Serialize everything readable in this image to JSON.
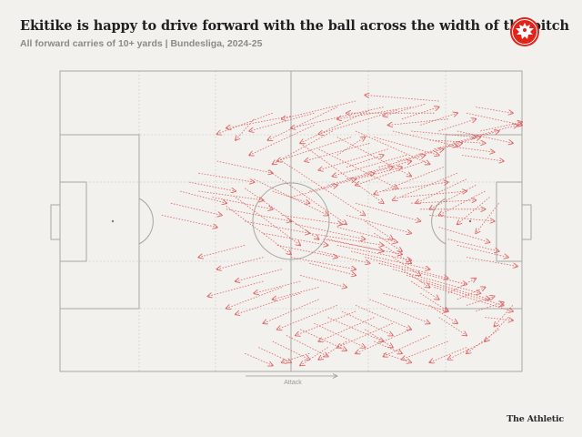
{
  "header": {
    "title": "Ekitike is happy to drive forward with the ball across the width of the pitch",
    "subtitle": "All forward carries of 10+ yards | Bundesliga, 2024-25"
  },
  "legend": {
    "attack_label": "Attack"
  },
  "footer": {
    "brand": "The Athletic"
  },
  "colors": {
    "carry": "#e06666",
    "line": "#a6a6a2",
    "grid": "#c8c8c4",
    "crest": "#e2231a"
  },
  "icons": {
    "crest": "eagle-crest-icon",
    "attack_arrow": "arrow-right-icon"
  },
  "chart_data": {
    "type": "scatter",
    "description_units": "pitch coordinates: x 0-100 = own goal line to opponent goal line, y 0-100 = top touchline to bottom touchline",
    "carries": [
      [
        82,
        10,
        66,
        8
      ],
      [
        79,
        11,
        70,
        15
      ],
      [
        81,
        14,
        62,
        14
      ],
      [
        84,
        16,
        71,
        18
      ],
      [
        76,
        12,
        60,
        16
      ],
      [
        73,
        13,
        56,
        21
      ],
      [
        70,
        12,
        50,
        19
      ],
      [
        67,
        13,
        52,
        24
      ],
      [
        64,
        10,
        48,
        16
      ],
      [
        60,
        12,
        45,
        23
      ],
      [
        55,
        14,
        41,
        20
      ],
      [
        50,
        15,
        36,
        19
      ],
      [
        46,
        14,
        34,
        21
      ],
      [
        42,
        16,
        38,
        23
      ],
      [
        55,
        18,
        41,
        28
      ],
      [
        59,
        20,
        46,
        31
      ],
      [
        63,
        22,
        47,
        30
      ],
      [
        67,
        24,
        53,
        30
      ],
      [
        71,
        26,
        56,
        33
      ],
      [
        75,
        28,
        59,
        35
      ],
      [
        79,
        30,
        64,
        38
      ],
      [
        83,
        32,
        68,
        41
      ],
      [
        86,
        34,
        72,
        43
      ],
      [
        88,
        36,
        77,
        44
      ],
      [
        90,
        38,
        80,
        46
      ],
      [
        92,
        40,
        82,
        48
      ],
      [
        93,
        42,
        86,
        51
      ],
      [
        95,
        44,
        90,
        54
      ],
      [
        84,
        25,
        94,
        27
      ],
      [
        87,
        28,
        96,
        30
      ],
      [
        80,
        23,
        92,
        24
      ],
      [
        76,
        20,
        90,
        22
      ],
      [
        72,
        20,
        86,
        25
      ],
      [
        68,
        22,
        82,
        28
      ],
      [
        64,
        20,
        80,
        31
      ],
      [
        60,
        22,
        76,
        35
      ],
      [
        56,
        26,
        73,
        39
      ],
      [
        52,
        24,
        70,
        44
      ],
      [
        48,
        30,
        66,
        48
      ],
      [
        45,
        33,
        62,
        51
      ],
      [
        42,
        36,
        58,
        48
      ],
      [
        40,
        39,
        56,
        56
      ],
      [
        38,
        42,
        52,
        58
      ],
      [
        36,
        45,
        50,
        61
      ],
      [
        48,
        48,
        61,
        51
      ],
      [
        51,
        51,
        66,
        56
      ],
      [
        54,
        54,
        70,
        58
      ],
      [
        57,
        56,
        74,
        61
      ],
      [
        60,
        58,
        76,
        63
      ],
      [
        63,
        60,
        80,
        66
      ],
      [
        66,
        62,
        84,
        69
      ],
      [
        69,
        64,
        88,
        71
      ],
      [
        72,
        66,
        91,
        74
      ],
      [
        75,
        68,
        93,
        76
      ],
      [
        78,
        70,
        96,
        78
      ],
      [
        81,
        72,
        98,
        80
      ],
      [
        84,
        74,
        90,
        69
      ],
      [
        86,
        76,
        92,
        72
      ],
      [
        88,
        78,
        94,
        75
      ],
      [
        90,
        80,
        96,
        77
      ],
      [
        92,
        82,
        98,
        83
      ],
      [
        70,
        74,
        84,
        80
      ],
      [
        67,
        76,
        80,
        84
      ],
      [
        64,
        78,
        76,
        86
      ],
      [
        61,
        80,
        72,
        88
      ],
      [
        58,
        82,
        70,
        90
      ],
      [
        55,
        84,
        66,
        92
      ],
      [
        52,
        86,
        62,
        93
      ],
      [
        49,
        88,
        58,
        95
      ],
      [
        46,
        90,
        54,
        96
      ],
      [
        43,
        92,
        50,
        97
      ],
      [
        40,
        94,
        46,
        98
      ],
      [
        44,
        70,
        32,
        75
      ],
      [
        48,
        72,
        36,
        79
      ],
      [
        52,
        74,
        38,
        81
      ],
      [
        56,
        76,
        44,
        84
      ],
      [
        60,
        78,
        47,
        86
      ],
      [
        64,
        80,
        51,
        88
      ],
      [
        68,
        82,
        56,
        90
      ],
      [
        72,
        84,
        60,
        92
      ],
      [
        76,
        86,
        64,
        94
      ],
      [
        80,
        88,
        70,
        95
      ],
      [
        84,
        90,
        74,
        96
      ],
      [
        88,
        92,
        80,
        97
      ],
      [
        92,
        90,
        84,
        96
      ],
      [
        95,
        86,
        88,
        94
      ],
      [
        97,
        82,
        92,
        90
      ],
      [
        98,
        78,
        94,
        85
      ],
      [
        70,
        40,
        84,
        37
      ],
      [
        74,
        42,
        88,
        40
      ],
      [
        76,
        44,
        90,
        43
      ],
      [
        78,
        46,
        92,
        46
      ],
      [
        80,
        48,
        94,
        50
      ],
      [
        82,
        52,
        93,
        57
      ],
      [
        84,
        56,
        95,
        60
      ],
      [
        86,
        58,
        97,
        62
      ],
      [
        88,
        62,
        99,
        65
      ],
      [
        64,
        44,
        78,
        50
      ],
      [
        62,
        48,
        76,
        54
      ],
      [
        60,
        52,
        73,
        57
      ],
      [
        58,
        56,
        70,
        60
      ],
      [
        56,
        60,
        67,
        64
      ],
      [
        54,
        64,
        64,
        68
      ],
      [
        52,
        68,
        62,
        72
      ],
      [
        50,
        62,
        64,
        66
      ],
      [
        47,
        58,
        60,
        62
      ],
      [
        44,
        54,
        58,
        58
      ],
      [
        40,
        50,
        54,
        54
      ],
      [
        36,
        46,
        50,
        50
      ],
      [
        33,
        42,
        46,
        46
      ],
      [
        30,
        40,
        44,
        43
      ],
      [
        34,
        30,
        46,
        34
      ],
      [
        30,
        34,
        42,
        37
      ],
      [
        28,
        37,
        38,
        40
      ],
      [
        26,
        40,
        36,
        44
      ],
      [
        24,
        44,
        35,
        48
      ],
      [
        22,
        48,
        34,
        52
      ],
      [
        46,
        40,
        54,
        44
      ],
      [
        50,
        42,
        60,
        38
      ],
      [
        54,
        40,
        64,
        36
      ],
      [
        58,
        38,
        68,
        34
      ],
      [
        62,
        36,
        72,
        32
      ],
      [
        66,
        34,
        76,
        30
      ],
      [
        69,
        32,
        79,
        28
      ],
      [
        73,
        30,
        83,
        26
      ],
      [
        77,
        28,
        87,
        24
      ],
      [
        81,
        26,
        91,
        22
      ],
      [
        85,
        24,
        95,
        20
      ],
      [
        89,
        22,
        99,
        18
      ],
      [
        91,
        20,
        100,
        17
      ],
      [
        66,
        50,
        72,
        56
      ],
      [
        68,
        54,
        74,
        60
      ],
      [
        70,
        58,
        76,
        64
      ],
      [
        72,
        62,
        78,
        68
      ],
      [
        74,
        66,
        80,
        72
      ],
      [
        76,
        70,
        82,
        76
      ],
      [
        78,
        74,
        84,
        80
      ],
      [
        80,
        78,
        86,
        84
      ],
      [
        82,
        82,
        88,
        88
      ],
      [
        66,
        86,
        72,
        92
      ],
      [
        68,
        90,
        74,
        94
      ],
      [
        70,
        94,
        76,
        97
      ],
      [
        62,
        90,
        56,
        96
      ],
      [
        58,
        92,
        52,
        98
      ],
      [
        54,
        94,
        48,
        97
      ],
      [
        86,
        20,
        98,
        24
      ],
      [
        88,
        14,
        100,
        18
      ],
      [
        90,
        12,
        98,
        14
      ],
      [
        74,
        16,
        82,
        12
      ],
      [
        78,
        18,
        86,
        14
      ],
      [
        82,
        20,
        90,
        16
      ],
      [
        60,
        28,
        66,
        22
      ],
      [
        62,
        32,
        70,
        28
      ],
      [
        64,
        36,
        74,
        32
      ],
      [
        40,
        58,
        30,
        62
      ],
      [
        44,
        62,
        34,
        66
      ],
      [
        48,
        66,
        38,
        70
      ],
      [
        52,
        70,
        42,
        74
      ],
      [
        56,
        72,
        46,
        76
      ]
    ]
  }
}
